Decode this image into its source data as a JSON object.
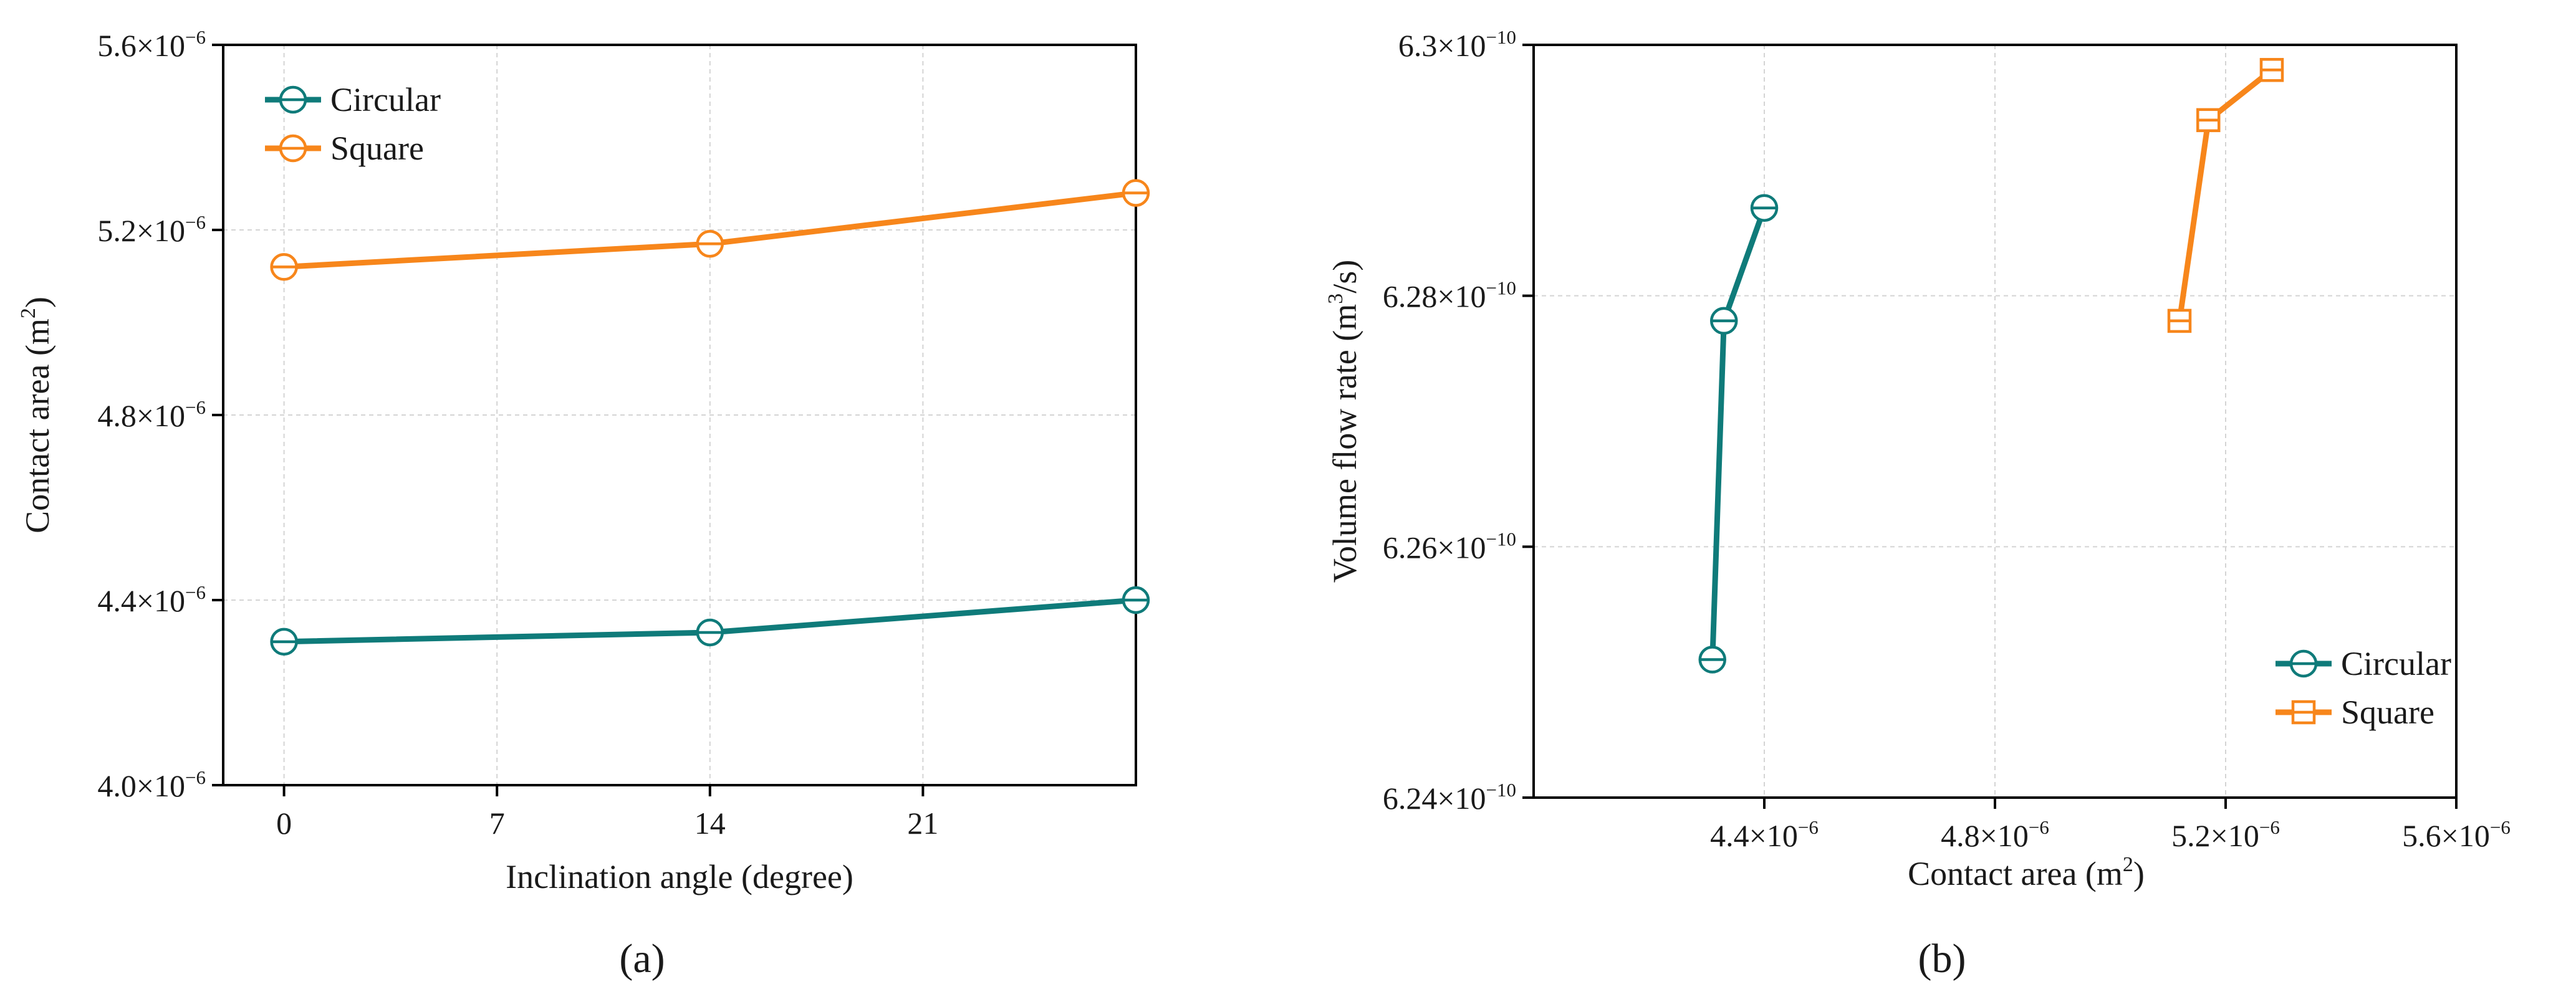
{
  "chart_data": [
    {
      "type": "line",
      "panel_label": "a",
      "xlabel": "Inclination angle (degree)",
      "ylabel": "Contact area (m",
      "ylabel_sup": "2",
      "ylabel_close": ")",
      "xlim": [
        -2,
        28
      ],
      "ylim": [
        4e-06,
        5.6e-06
      ],
      "x_ticks": [
        0,
        7,
        14,
        21
      ],
      "x_tick_labels": [
        "0",
        "7",
        "14",
        "21"
      ],
      "y_ticks": [
        4e-06,
        4.4e-06,
        4.8e-06,
        5.2e-06,
        5.6e-06
      ],
      "y_tick_mantissas": [
        "4.0×10",
        "4.4×10",
        "4.8×10",
        "5.2×10",
        "5.6×10"
      ],
      "y_tick_exponent": "−6",
      "grid": true,
      "legend_position": "top-left",
      "series": [
        {
          "name": "Circular",
          "color": "#0f7b7a",
          "marker": "circle",
          "x": [
            0,
            14,
            28
          ],
          "y": [
            4.31e-06,
            4.33e-06,
            4.4e-06
          ]
        },
        {
          "name": "Square",
          "color": "#f7861b",
          "marker": "circle",
          "x": [
            0,
            14,
            28
          ],
          "y": [
            5.12e-06,
            5.17e-06,
            5.28e-06
          ]
        }
      ]
    },
    {
      "type": "line",
      "panel_label": "b",
      "xlabel": "Contact area (m",
      "xlabel_sup": "2",
      "xlabel_close": ")",
      "ylabel": "Volume flow rate (m",
      "ylabel_sup": "3",
      "ylabel_close": "/s)",
      "xlim": [
        4e-06,
        5.6e-06
      ],
      "ylim": [
        6.24e-10,
        6.3e-10
      ],
      "x_ticks": [
        4.4e-06,
        4.8e-06,
        5.2e-06,
        5.6e-06
      ],
      "x_tick_mantissas": [
        "4.4×10",
        "4.8×10",
        "5.2×10",
        "5.6×10"
      ],
      "x_tick_exponent": "−6",
      "y_ticks": [
        6.24e-10,
        6.26e-10,
        6.28e-10,
        6.3e-10
      ],
      "y_tick_mantissas": [
        "6.24×10",
        "6.26×10",
        "6.28×10",
        "6.3×10"
      ],
      "y_tick_exponent": "−10",
      "grid": true,
      "legend_position": "bottom-right",
      "series": [
        {
          "name": "Circular",
          "color": "#0f7b7a",
          "marker": "circle",
          "x": [
            4.31e-06,
            4.33e-06,
            4.4e-06
          ],
          "y": [
            6.251e-10,
            6.278e-10,
            6.287e-10
          ]
        },
        {
          "name": "Square",
          "color": "#f7861b",
          "marker": "square",
          "x": [
            5.12e-06,
            5.17e-06,
            5.28e-06
          ],
          "y": [
            6.278e-10,
            6.294e-10,
            6.298e-10
          ]
        }
      ]
    }
  ]
}
